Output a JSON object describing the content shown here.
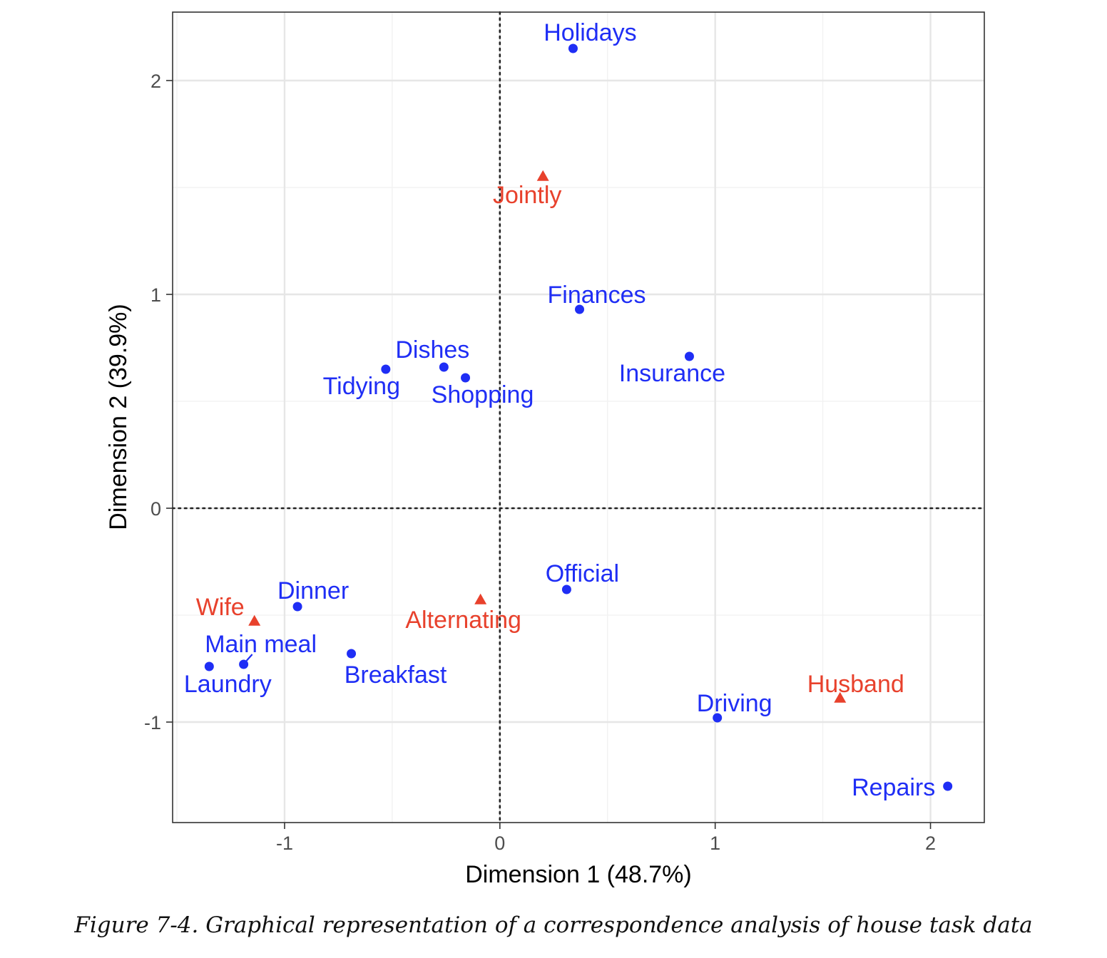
{
  "chart_data": {
    "type": "scatter",
    "xlabel": "Dimension 1 (48.7%)",
    "ylabel": "Dimension 2 (39.9%)",
    "xlim": [
      -1.52,
      2.25
    ],
    "ylim": [
      -1.47,
      2.32
    ],
    "x_ticks": [
      -1,
      0,
      1,
      2
    ],
    "y_ticks": [
      -1,
      0,
      1,
      2
    ],
    "x_tick_labels": [
      "-1",
      "0",
      "1",
      "2"
    ],
    "y_tick_labels": [
      "-1",
      "0",
      "1",
      "2"
    ],
    "grid": true,
    "reference_lines": {
      "x": 0,
      "y": 0,
      "style": "dotted"
    },
    "colors": {
      "tasks": "#1f2ef5",
      "categories": "#e8412c"
    },
    "series": [
      {
        "marker": "circle",
        "color": "#1f2ef5",
        "points": [
          {
            "label": "Holidays",
            "x": 0.34,
            "y": 2.15
          },
          {
            "label": "Finances",
            "x": 0.37,
            "y": 0.93
          },
          {
            "label": "Insurance",
            "x": 0.88,
            "y": 0.71
          },
          {
            "label": "Dishes",
            "x": -0.26,
            "y": 0.66
          },
          {
            "label": "Tidying",
            "x": -0.53,
            "y": 0.65
          },
          {
            "label": "Shopping",
            "x": -0.16,
            "y": 0.61
          },
          {
            "label": "Official",
            "x": 0.31,
            "y": -0.38
          },
          {
            "label": "Dinner",
            "x": -0.94,
            "y": -0.46
          },
          {
            "label": "Breakfast",
            "x": -0.69,
            "y": -0.68
          },
          {
            "label": "Main meal",
            "x": -1.19,
            "y": -0.73
          },
          {
            "label": "Laundry",
            "x": -1.35,
            "y": -0.74
          },
          {
            "label": "Driving",
            "x": 1.01,
            "y": -0.98
          },
          {
            "label": "Repairs",
            "x": 2.08,
            "y": -1.3
          }
        ]
      },
      {
        "marker": "triangle",
        "color": "#e8412c",
        "points": [
          {
            "label": "Jointly",
            "x": 0.2,
            "y": 1.55
          },
          {
            "label": "Alternating",
            "x": -0.09,
            "y": -0.43
          },
          {
            "label": "Wife",
            "x": -1.14,
            "y": -0.53
          },
          {
            "label": "Husband",
            "x": 1.58,
            "y": -0.89
          }
        ]
      }
    ]
  },
  "caption": "Figure 7-4. Graphical representation of a correspondence analysis of house task data"
}
